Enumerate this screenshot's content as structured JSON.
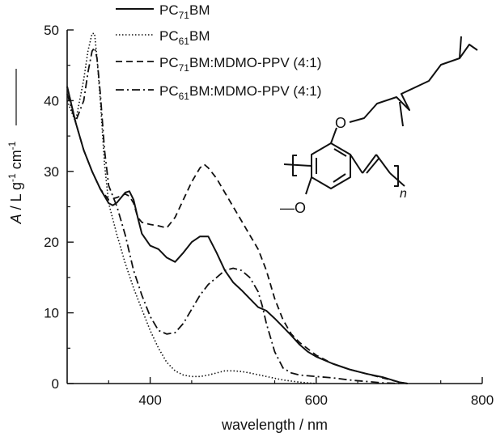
{
  "chart_data": {
    "type": "line",
    "xlabel": "wavelength / nm",
    "ylabel_parts": [
      "A",
      " / L g",
      "-1",
      " cm",
      "-1"
    ],
    "xlim": [
      300,
      800
    ],
    "ylim": [
      0,
      50
    ],
    "xticks": [
      400,
      600,
      800
    ],
    "yticks": [
      0,
      10,
      20,
      30,
      40,
      50
    ],
    "grid": false,
    "legend_position": "top-center",
    "series": [
      {
        "name_parts": [
          "PC",
          "71",
          "BM"
        ],
        "dash": "solid",
        "x": [
          300,
          310,
          320,
          330,
          340,
          350,
          355,
          360,
          365,
          370,
          375,
          380,
          385,
          390,
          400,
          410,
          420,
          430,
          440,
          450,
          460,
          470,
          480,
          490,
          500,
          510,
          520,
          530,
          540,
          550,
          560,
          570,
          580,
          590,
          600,
          620,
          640,
          660,
          680,
          700,
          710
        ],
        "y": [
          42,
          37,
          33,
          30,
          27.5,
          25.5,
          25.2,
          25.6,
          26.3,
          27.0,
          27.2,
          26.0,
          23.5,
          21.2,
          19.5,
          19.0,
          17.8,
          17.2,
          18.5,
          20.0,
          20.8,
          20.8,
          18.5,
          16.0,
          14.3,
          13.2,
          12.0,
          10.8,
          10.3,
          9.2,
          8.0,
          6.8,
          5.5,
          4.5,
          3.8,
          2.8,
          2.0,
          1.4,
          0.9,
          0.2,
          0
        ]
      },
      {
        "name_parts": [
          "PC",
          "61",
          "BM"
        ],
        "dash": "dot",
        "x": [
          300,
          310,
          320,
          325,
          330,
          333,
          336,
          340,
          345,
          350,
          360,
          370,
          380,
          390,
          400,
          410,
          420,
          430,
          440,
          450,
          460,
          470,
          480,
          490,
          500,
          510,
          520,
          540,
          560,
          580,
          600
        ],
        "y": [
          40,
          37,
          43,
          47,
          49.5,
          49.5,
          46,
          40,
          31,
          25.5,
          21,
          17,
          13.5,
          10.5,
          7.5,
          5,
          3,
          1.8,
          1.2,
          1.0,
          1.0,
          1.2,
          1.5,
          1.8,
          1.8,
          1.7,
          1.5,
          1.0,
          0.5,
          0.2,
          0
        ]
      },
      {
        "name_parts": [
          "PC",
          "71",
          "BM:MDMO-PPV (4:1)"
        ],
        "dash": "dash",
        "x": [
          300,
          310,
          320,
          330,
          340,
          350,
          360,
          370,
          375,
          380,
          385,
          390,
          400,
          410,
          420,
          430,
          440,
          450,
          460,
          465,
          470,
          480,
          490,
          500,
          510,
          520,
          530,
          540,
          550,
          560,
          570,
          580,
          600,
          620,
          640,
          660,
          680,
          700,
          710
        ],
        "y": [
          42,
          37,
          33,
          30,
          27.5,
          26,
          26.3,
          26.8,
          26.5,
          25.5,
          23.5,
          22.8,
          22.5,
          22.3,
          22.0,
          23.5,
          26.0,
          28.5,
          30.5,
          31.0,
          30.5,
          29.0,
          27.0,
          25.0,
          23.0,
          21.0,
          19.0,
          16.0,
          12.0,
          9.0,
          7.0,
          5.8,
          4.0,
          2.8,
          2.0,
          1.4,
          0.8,
          0.2,
          0
        ]
      },
      {
        "name_parts": [
          "PC",
          "61",
          "BM:MDMO-PPV (4:1)"
        ],
        "dash": "dashdot",
        "x": [
          300,
          310,
          320,
          325,
          330,
          333,
          336,
          340,
          345,
          350,
          360,
          370,
          380,
          390,
          400,
          410,
          420,
          430,
          440,
          450,
          460,
          470,
          480,
          490,
          500,
          510,
          520,
          530,
          535,
          540,
          550,
          560,
          570,
          580,
          600,
          620,
          640,
          660,
          680,
          700
        ],
        "y": [
          41,
          37,
          40,
          44,
          47,
          47.5,
          46,
          41,
          33,
          28,
          25,
          21,
          16,
          12.5,
          9.5,
          7.5,
          7.0,
          7.2,
          8.5,
          10.5,
          12.5,
          14.0,
          15.0,
          16.0,
          16.3,
          16.0,
          15.0,
          13.0,
          11.0,
          8.5,
          4.5,
          2.2,
          1.5,
          1.2,
          1.0,
          0.8,
          0.5,
          0.3,
          0.1,
          0
        ]
      }
    ]
  },
  "structure": {
    "substituent_oxygen": "O",
    "methoxy_label": "—O",
    "repeat_label": "n"
  }
}
